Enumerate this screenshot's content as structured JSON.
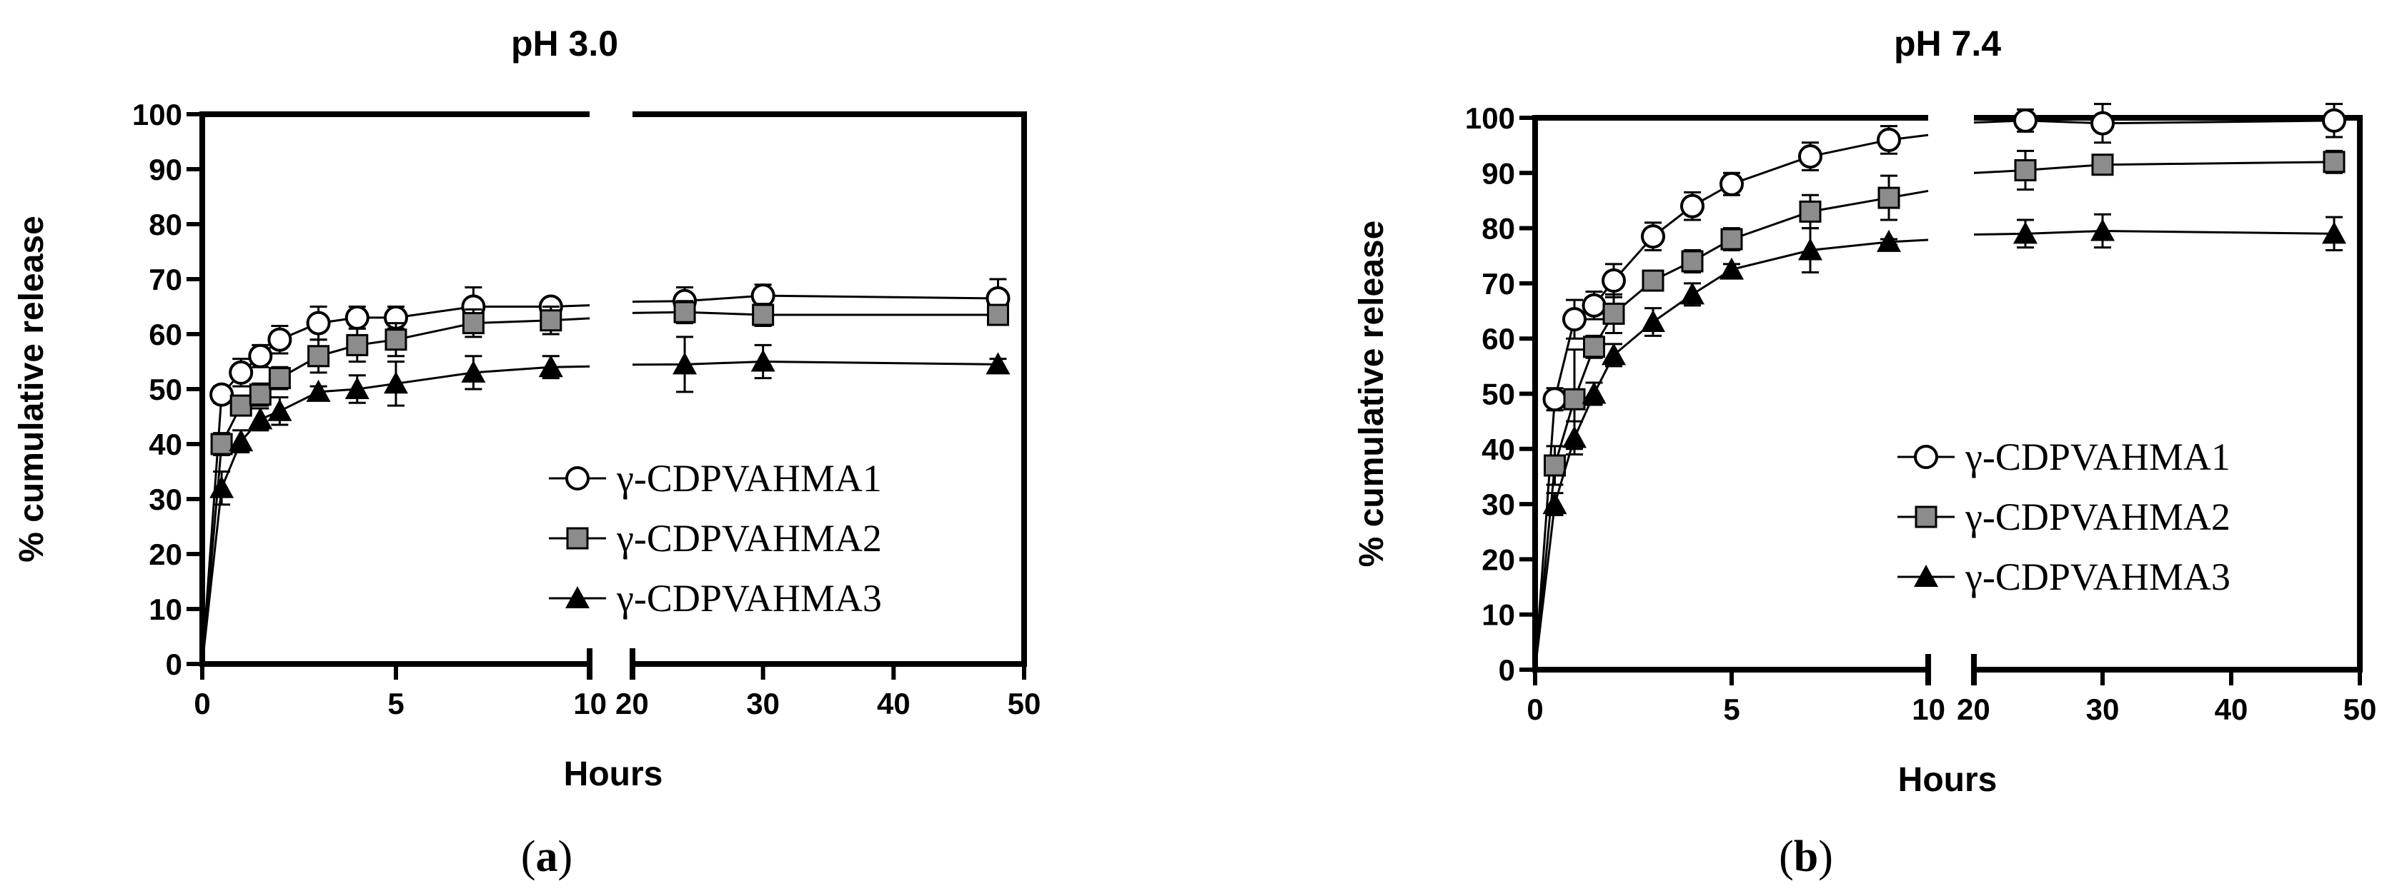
{
  "chart_data": [
    {
      "panel_label": {
        "open": "(",
        "letter": "a",
        "close": ")"
      },
      "type": "line",
      "title": "pH 3.0",
      "xlabel": "Hours",
      "ylabel": "% cumulative release",
      "xlim_segments": [
        [
          0,
          10
        ],
        [
          20,
          50
        ]
      ],
      "xticks_left": [
        "0",
        "5",
        "10"
      ],
      "xticks_right": [
        "20",
        "30",
        "40",
        "50"
      ],
      "ylim": [
        0,
        100
      ],
      "yticks": [
        "0",
        "10",
        "20",
        "30",
        "40",
        "50",
        "60",
        "70",
        "80",
        "90",
        "100"
      ],
      "legend_position": "bottom-right",
      "series": [
        {
          "name": "γ-CDPVAHMA1",
          "marker": "circle-open",
          "x": [
            0,
            0.5,
            1,
            1.5,
            2,
            3,
            4,
            5,
            7,
            9,
            24,
            30,
            48
          ],
          "y": [
            0,
            49,
            53,
            56,
            59,
            62,
            63,
            63,
            65,
            65,
            66,
            67,
            66.5
          ],
          "err": [
            0,
            1.5,
            2.5,
            2,
            2.5,
            3,
            2,
            2,
            3.5,
            1,
            2.5,
            2,
            3.5
          ]
        },
        {
          "name": "γ-CDPVAHMA2",
          "marker": "square-filled",
          "x": [
            0,
            0.5,
            1,
            1.5,
            2,
            3,
            4,
            5,
            7,
            9,
            24,
            30,
            48
          ],
          "y": [
            0,
            40,
            47,
            49,
            52,
            56,
            58,
            59,
            62,
            62.5,
            64,
            63.5,
            63.5
          ],
          "err": [
            0,
            2,
            1.5,
            2,
            2,
            3,
            3,
            3,
            2.5,
            2.5,
            2,
            2,
            1.5
          ]
        },
        {
          "name": "γ-CDPVAHMA3",
          "marker": "triangle-filled",
          "x": [
            0,
            0.5,
            1,
            1.5,
            2,
            3,
            4,
            5,
            7,
            9,
            24,
            30,
            48
          ],
          "y": [
            0,
            32,
            40.5,
            44.5,
            46,
            49.5,
            50,
            51,
            53,
            54,
            54.5,
            55,
            54.5
          ],
          "err": [
            0,
            3,
            2,
            2,
            2.5,
            1,
            2.5,
            4,
            3,
            2,
            5,
            3,
            1
          ]
        }
      ]
    },
    {
      "panel_label": {
        "open": "(",
        "letter": "b",
        "close": ")"
      },
      "type": "line",
      "title": "pH 7.4",
      "xlabel": "Hours",
      "ylabel": "% cumulative release",
      "xlim_segments": [
        [
          0,
          10
        ],
        [
          20,
          50
        ]
      ],
      "xticks_left": [
        "0",
        "5",
        "10"
      ],
      "xticks_right": [
        "20",
        "30",
        "40",
        "50"
      ],
      "ylim": [
        0,
        100
      ],
      "yticks": [
        "0",
        "10",
        "20",
        "30",
        "40",
        "50",
        "60",
        "70",
        "80",
        "90",
        "100"
      ],
      "legend_position": "bottom-right",
      "series": [
        {
          "name": "γ-CDPVAHMA1",
          "marker": "circle-open",
          "x": [
            0,
            0.5,
            1,
            1.5,
            2,
            3,
            4,
            5,
            7,
            9,
            24,
            30,
            48
          ],
          "y": [
            0,
            49,
            63.5,
            66,
            70.5,
            78.5,
            84,
            88,
            93,
            96,
            99.5,
            99,
            99.5
          ],
          "err": [
            0,
            2,
            3.5,
            2.5,
            3,
            2.5,
            2.5,
            2,
            2.5,
            2.5,
            2,
            3.5,
            3
          ]
        },
        {
          "name": "γ-CDPVAHMA2",
          "marker": "square-filled",
          "x": [
            0,
            0.5,
            1,
            1.5,
            2,
            3,
            4,
            5,
            7,
            9,
            24,
            30,
            48
          ],
          "y": [
            0,
            37,
            49,
            58.5,
            64.5,
            70.5,
            74,
            78,
            83,
            85.5,
            90.5,
            91.5,
            92
          ],
          "err": [
            0,
            3.5,
            9,
            2,
            3.5,
            1.5,
            2,
            2,
            3,
            4,
            3.5,
            1.5,
            2
          ]
        },
        {
          "name": "γ-CDPVAHMA3",
          "marker": "triangle-filled",
          "x": [
            0,
            0.5,
            1,
            1.5,
            2,
            3,
            4,
            5,
            7,
            9,
            24,
            30,
            48
          ],
          "y": [
            0,
            30,
            42,
            50,
            57,
            63,
            68,
            72.5,
            76,
            77.5,
            79,
            79.5,
            79
          ],
          "err": [
            0,
            2,
            3,
            2,
            2,
            2.5,
            2,
            1,
            4,
            0.5,
            2.5,
            3,
            3
          ]
        }
      ]
    }
  ]
}
